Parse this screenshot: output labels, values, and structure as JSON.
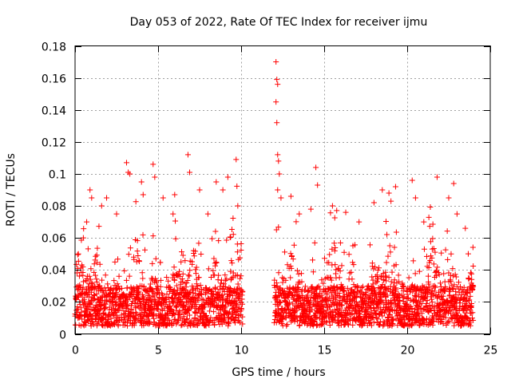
{
  "chart_data": {
    "type": "scatter",
    "title": "Day 053 of 2022, Rate Of TEC Index for receiver ijmu",
    "xlabel": "GPS time / hours",
    "ylabel": "ROTI / TECUs",
    "xlim": [
      0,
      25
    ],
    "ylim": [
      0,
      0.18
    ],
    "x_ticks": [
      0,
      5,
      10,
      15,
      20,
      25
    ],
    "x_tick_labels": [
      "0",
      "5",
      "10",
      "15",
      "20",
      "25"
    ],
    "y_ticks": [
      0,
      0.02,
      0.04,
      0.06,
      0.08,
      0.1,
      0.12,
      0.14,
      0.16,
      0.18
    ],
    "y_tick_labels": [
      "0",
      "0.02",
      "0.04",
      "0.06",
      "0.08",
      "0.1",
      "0.12",
      "0.14",
      "0.16",
      "0.18"
    ],
    "grid": true,
    "marker": "plus",
    "color": "#ff0000",
    "data_gap_hours": [
      10.1,
      12.0
    ],
    "series": [
      {
        "name": "ROTI",
        "points": [
          [
            0.2,
            0.05
          ],
          [
            0.5,
            0.06
          ],
          [
            0.7,
            0.07
          ],
          [
            0.9,
            0.09
          ],
          [
            1.0,
            0.085
          ],
          [
            1.6,
            0.08
          ],
          [
            1.9,
            0.085
          ],
          [
            2.5,
            0.075
          ],
          [
            3.1,
            0.107
          ],
          [
            3.2,
            0.101
          ],
          [
            3.3,
            0.1
          ],
          [
            4.0,
            0.095
          ],
          [
            4.1,
            0.087
          ],
          [
            4.7,
            0.106
          ],
          [
            4.8,
            0.098
          ],
          [
            5.3,
            0.085
          ],
          [
            5.9,
            0.075
          ],
          [
            6.0,
            0.087
          ],
          [
            6.8,
            0.112
          ],
          [
            6.9,
            0.101
          ],
          [
            7.5,
            0.09
          ],
          [
            8.0,
            0.075
          ],
          [
            8.5,
            0.095
          ],
          [
            8.9,
            0.09
          ],
          [
            9.2,
            0.098
          ],
          [
            9.7,
            0.109
          ],
          [
            9.8,
            0.08
          ],
          [
            12.1,
            0.17
          ],
          [
            12.15,
            0.159
          ],
          [
            12.2,
            0.156
          ],
          [
            12.1,
            0.145
          ],
          [
            12.15,
            0.132
          ],
          [
            12.2,
            0.112
          ],
          [
            12.25,
            0.108
          ],
          [
            12.3,
            0.1
          ],
          [
            12.2,
            0.09
          ],
          [
            12.4,
            0.085
          ],
          [
            13.0,
            0.086
          ],
          [
            13.5,
            0.075
          ],
          [
            14.2,
            0.078
          ],
          [
            14.5,
            0.104
          ],
          [
            14.6,
            0.093
          ],
          [
            15.5,
            0.08
          ],
          [
            16.3,
            0.076
          ],
          [
            17.1,
            0.07
          ],
          [
            18.0,
            0.082
          ],
          [
            18.5,
            0.09
          ],
          [
            18.9,
            0.088
          ],
          [
            19.3,
            0.092
          ],
          [
            20.3,
            0.096
          ],
          [
            20.5,
            0.085
          ],
          [
            21.0,
            0.07
          ],
          [
            21.8,
            0.098
          ],
          [
            22.5,
            0.085
          ],
          [
            22.8,
            0.094
          ],
          [
            23.0,
            0.075
          ],
          [
            23.5,
            0.066
          ]
        ]
      }
    ]
  }
}
